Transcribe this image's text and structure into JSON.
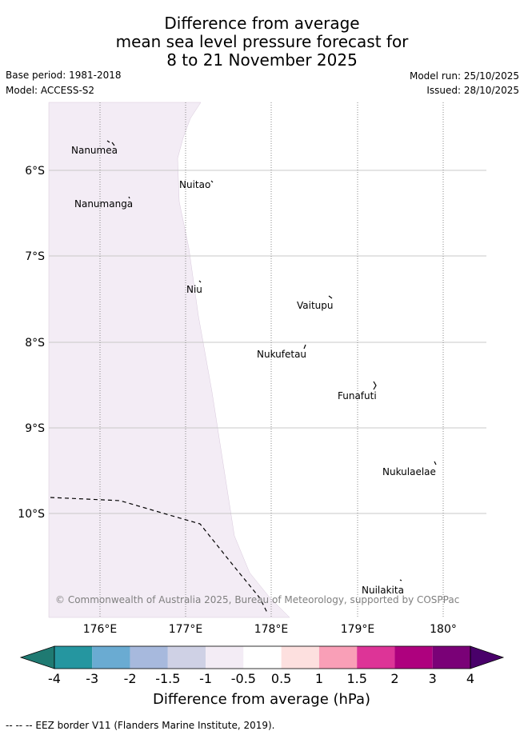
{
  "title": {
    "line1": "Difference from average",
    "line2": "mean sea level pressure forecast for",
    "line3": "8 to 21 November 2025"
  },
  "meta": {
    "base_period": "Base period: 1981-2018",
    "model": "Model: ACCESS-S2",
    "model_run": "Model run: 25/10/2025",
    "issued": "Issued: 28/10/2025"
  },
  "map": {
    "lat_labels": [
      "6°S",
      "7°S",
      "8°S",
      "9°S",
      "10°S"
    ],
    "lon_labels": [
      "176°E",
      "177°E",
      "178°E",
      "179°E",
      "180°"
    ],
    "places": [
      "Nanumea",
      "Nuitao",
      "Nanumanga",
      "Niu",
      "Vaitupu",
      "Nukufetau",
      "Funafuti",
      "Nukulaelae",
      "Nuilakita"
    ],
    "copyright": "© Commonwealth of Australia 2025, Bureau of Meteorology, supported by COSPPac",
    "anomaly_fill_color": "#f3ecf5"
  },
  "legend": {
    "tick_labels": [
      "-4",
      "-3",
      "-2",
      "-1.5",
      "-1",
      "-0.5",
      "0.5",
      "1",
      "1.5",
      "2",
      "3",
      "4"
    ],
    "colors": [
      "#1f7a72",
      "#2596a0",
      "#6aabd2",
      "#a7b9dd",
      "#cfd1e5",
      "#f3ecf5",
      "#ffffff",
      "#fde0df",
      "#f99fb7",
      "#dd3497",
      "#ae017e",
      "#7a0177",
      "#49006a"
    ],
    "title": "Difference from average (hPa)"
  },
  "footer": {
    "eez_note": "--  --  -- EEZ border V11 (Flanders Marine Institute, 2019)."
  }
}
